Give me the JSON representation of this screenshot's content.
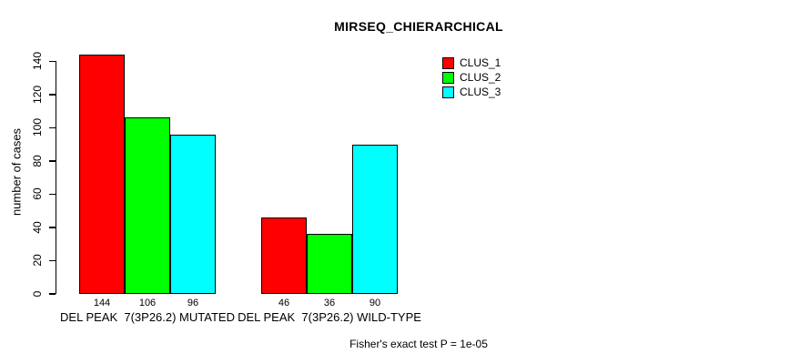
{
  "chart_data": {
    "type": "bar",
    "title": "MIRSEQ_CHIERARCHICAL",
    "ylabel": "number of cases",
    "xlabel": "",
    "footer": "Fisher's exact test P = 1e-05",
    "categories": [
      "DEL PEAK  7(3P26.2) MUTATED",
      "DEL PEAK  7(3P26.2) WILD-TYPE"
    ],
    "series": [
      {
        "name": "CLUS_1",
        "color": "#ff0000",
        "values": [
          144,
          46
        ]
      },
      {
        "name": "CLUS_2",
        "color": "#00ff00",
        "values": [
          106,
          36
        ]
      },
      {
        "name": "CLUS_3",
        "color": "#00ffff",
        "values": [
          96,
          90
        ]
      }
    ],
    "yticks": [
      0,
      20,
      40,
      60,
      80,
      100,
      120,
      140
    ],
    "ylim": [
      0,
      140
    ],
    "grid": false,
    "legend_position": "top-right",
    "bar_border_color": "#000000",
    "axis_color": "#000000",
    "text_color": "#000000",
    "background_color": "#ffffff"
  }
}
